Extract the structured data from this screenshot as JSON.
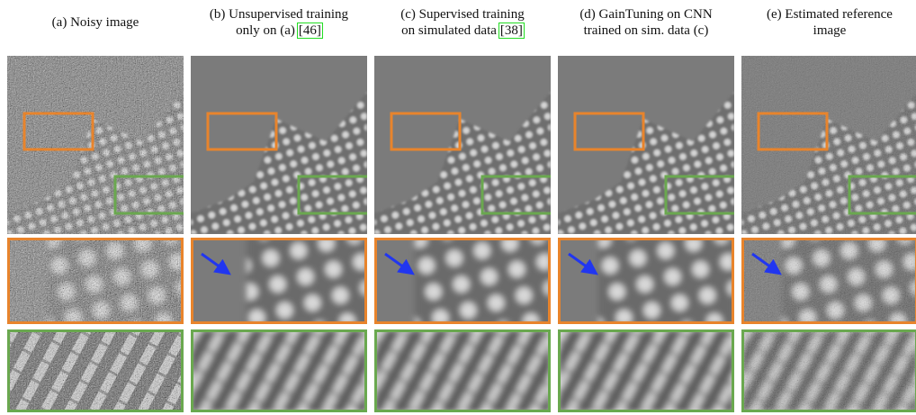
{
  "panels": [
    {
      "caption_lines": [
        "(a) Noisy image"
      ]
    },
    {
      "caption_lines": [
        "(b) Unsupervised training",
        "only on (a)"
      ],
      "citation": "[46]"
    },
    {
      "caption_lines": [
        "(c) Supervised training",
        "on simulated data"
      ],
      "citation": "[38]"
    },
    {
      "caption_lines": [
        "(d) GainTuning on CNN",
        "trained on sim. data (c)"
      ]
    },
    {
      "caption_lines": [
        "(e) Estimated reference",
        "image"
      ]
    }
  ]
}
